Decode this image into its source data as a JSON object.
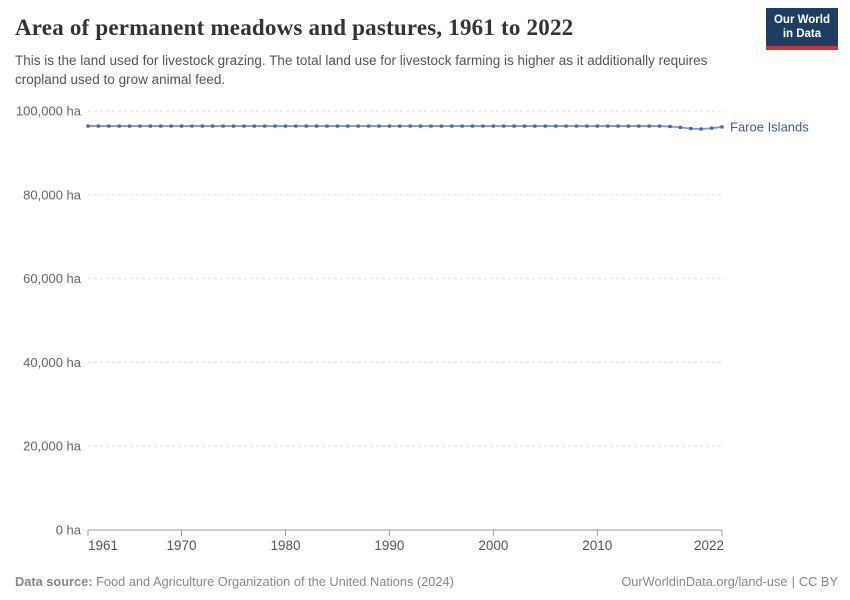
{
  "header": {
    "title": "Area of permanent meadows and pastures, 1961 to 2022",
    "subtitle": "This is the land used for livestock grazing. The total land use for livestock farming is higher as it additionally requires cropland used to grow animal feed.",
    "logo": {
      "line1": "Our World",
      "line2": "in Data"
    }
  },
  "colors": {
    "logo_bg": "#1d3d63",
    "logo_accent": "#cf3134",
    "grid": "#dddddd",
    "axis": "#999999",
    "y_tick_text": "#666666",
    "x_tick_text": "#555555",
    "series_line": "#8095c5",
    "series_marker": "#4a66a2",
    "series_label": "#3d5c8f"
  },
  "chart_data": {
    "type": "line",
    "title": "Area of permanent meadows and pastures, 1961 to 2022",
    "xlabel": "",
    "ylabel": "",
    "xlim": [
      1961,
      2022
    ],
    "ylim": [
      0,
      100000
    ],
    "grid": "horizontal-dashed",
    "legend_position": "line-end-label",
    "x_ticks": [
      1961,
      1970,
      1980,
      1990,
      2000,
      2010,
      2022
    ],
    "y_ticks": [
      0,
      20000,
      40000,
      60000,
      80000,
      100000
    ],
    "y_tick_labels": [
      "0 ha",
      "20,000 ha",
      "40,000 ha",
      "60,000 ha",
      "80,000 ha",
      "100,000 ha"
    ],
    "series": [
      {
        "name": "Faroe Islands",
        "years": [
          1961,
          1962,
          1963,
          1964,
          1965,
          1966,
          1967,
          1968,
          1969,
          1970,
          1971,
          1972,
          1973,
          1974,
          1975,
          1976,
          1977,
          1978,
          1979,
          1980,
          1981,
          1982,
          1983,
          1984,
          1985,
          1986,
          1987,
          1988,
          1989,
          1990,
          1991,
          1992,
          1993,
          1994,
          1995,
          1996,
          1997,
          1998,
          1999,
          2000,
          2001,
          2002,
          2003,
          2004,
          2005,
          2006,
          2007,
          2008,
          2009,
          2010,
          2011,
          2012,
          2013,
          2014,
          2015,
          2016,
          2017,
          2018,
          2019,
          2020,
          2021,
          2022
        ],
        "values": [
          96400,
          96400,
          96400,
          96400,
          96400,
          96400,
          96400,
          96400,
          96400,
          96400,
          96400,
          96400,
          96400,
          96400,
          96400,
          96400,
          96400,
          96400,
          96400,
          96400,
          96400,
          96400,
          96400,
          96400,
          96400,
          96400,
          96400,
          96400,
          96400,
          96400,
          96400,
          96400,
          96400,
          96400,
          96400,
          96400,
          96400,
          96400,
          96400,
          96400,
          96400,
          96400,
          96400,
          96400,
          96400,
          96400,
          96400,
          96400,
          96400,
          96400,
          96400,
          96400,
          96400,
          96400,
          96400,
          96400,
          96300,
          96100,
          95800,
          95700,
          95900,
          96200
        ]
      }
    ]
  },
  "footer": {
    "datasource_label": "Data source:",
    "datasource_text": "Food and Agriculture Organization of the United Nations (2024)",
    "right_link": "OurWorldinData.org/land-use",
    "separator": "|",
    "license": "CC BY"
  }
}
